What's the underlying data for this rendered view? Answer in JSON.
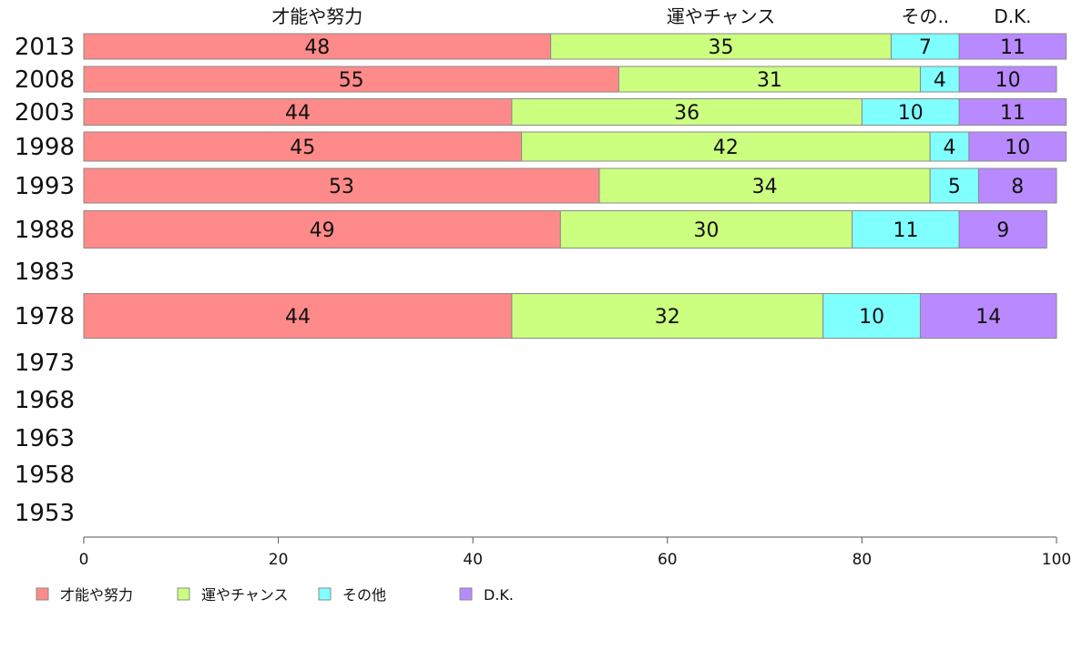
{
  "chart_data": {
    "type": "bar",
    "orientation": "horizontal",
    "stacked": true,
    "categories": [
      "2013",
      "2008",
      "2003",
      "1998",
      "1993",
      "1988",
      "1983",
      "1978",
      "1973",
      "1968",
      "1963",
      "1958",
      "1953"
    ],
    "series": [
      {
        "name": "才能や努力",
        "color": "#ff8a8a",
        "values": [
          48,
          55,
          44,
          45,
          53,
          49,
          null,
          44,
          null,
          null,
          null,
          null,
          null
        ]
      },
      {
        "name": "運やチャンス",
        "color": "#ccff80",
        "values": [
          35,
          31,
          36,
          42,
          34,
          30,
          null,
          32,
          null,
          null,
          null,
          null,
          null
        ]
      },
      {
        "name": "その他",
        "color": "#80ffff",
        "values": [
          7,
          4,
          10,
          4,
          5,
          11,
          null,
          10,
          null,
          null,
          null,
          null,
          null
        ]
      },
      {
        "name": "D.K.",
        "color": "#b98aff",
        "values": [
          11,
          10,
          11,
          10,
          8,
          9,
          null,
          14,
          null,
          null,
          null,
          null,
          null
        ]
      }
    ],
    "column_headers": [
      "才能や努力",
      "運やチャンス",
      "その..",
      "D.K."
    ],
    "xlim": [
      0,
      100
    ],
    "xticks": [
      0,
      20,
      40,
      60,
      80,
      100
    ],
    "xlabel": "",
    "ylabel": "",
    "title": "",
    "grid": false,
    "legend_position": "bottom-left"
  }
}
